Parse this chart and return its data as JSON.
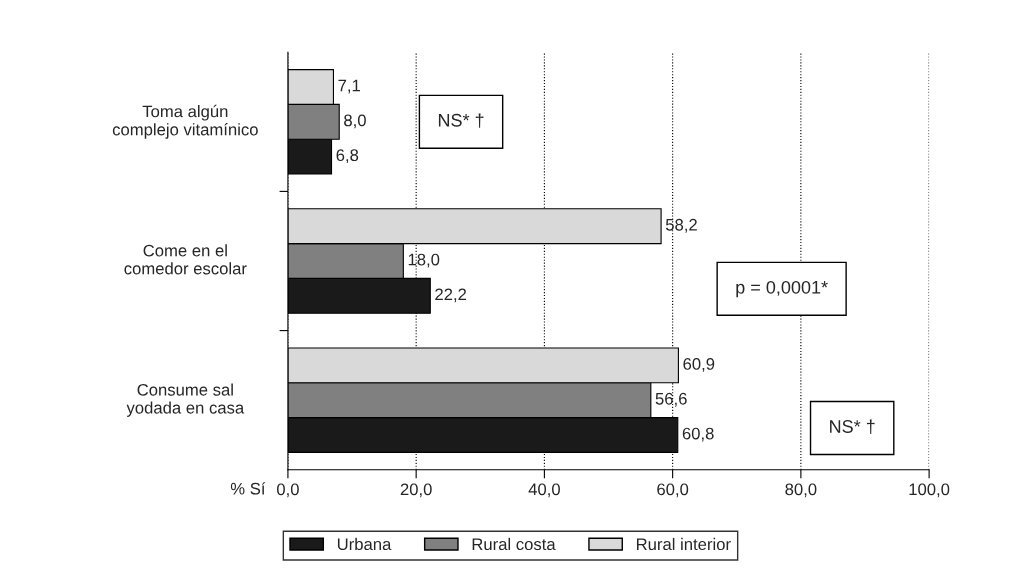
{
  "chart_data": {
    "type": "bar",
    "orientation": "horizontal",
    "categories": [
      "Toma algún\ncomplejo vitamínico",
      "Come en el\ncomedor escolar",
      "Consume sal\nyodada en casa"
    ],
    "series": [
      {
        "name": "Urbana",
        "color": "#1a1a1a",
        "values": [
          6.8,
          22.2,
          60.8
        ],
        "value_labels": [
          "6,8",
          "22,2",
          "60,8"
        ]
      },
      {
        "name": "Rural costa",
        "color": "#808080",
        "values": [
          8.0,
          18.0,
          56.6
        ],
        "value_labels": [
          "8,0",
          "18,0",
          "56,6"
        ]
      },
      {
        "name": "Rural interior",
        "color": "#d9d9d9",
        "values": [
          7.1,
          58.2,
          60.9
        ],
        "value_labels": [
          "7,1",
          "58,2",
          "60,9"
        ]
      }
    ],
    "xlabel": "% Sí",
    "xlim": [
      0,
      100
    ],
    "xticks": [
      {
        "value": 0,
        "label": "0,0"
      },
      {
        "value": 20,
        "label": "20,0"
      },
      {
        "value": 40,
        "label": "40,0"
      },
      {
        "value": 60,
        "label": "60,0"
      },
      {
        "value": 80,
        "label": "80,0"
      },
      {
        "value": 100,
        "label": "100,0"
      }
    ],
    "grid": "x",
    "line_style": "dotted",
    "legend": "bottom",
    "annotations": [
      "NS* †",
      "p = 0,0001*",
      "NS* †"
    ]
  }
}
